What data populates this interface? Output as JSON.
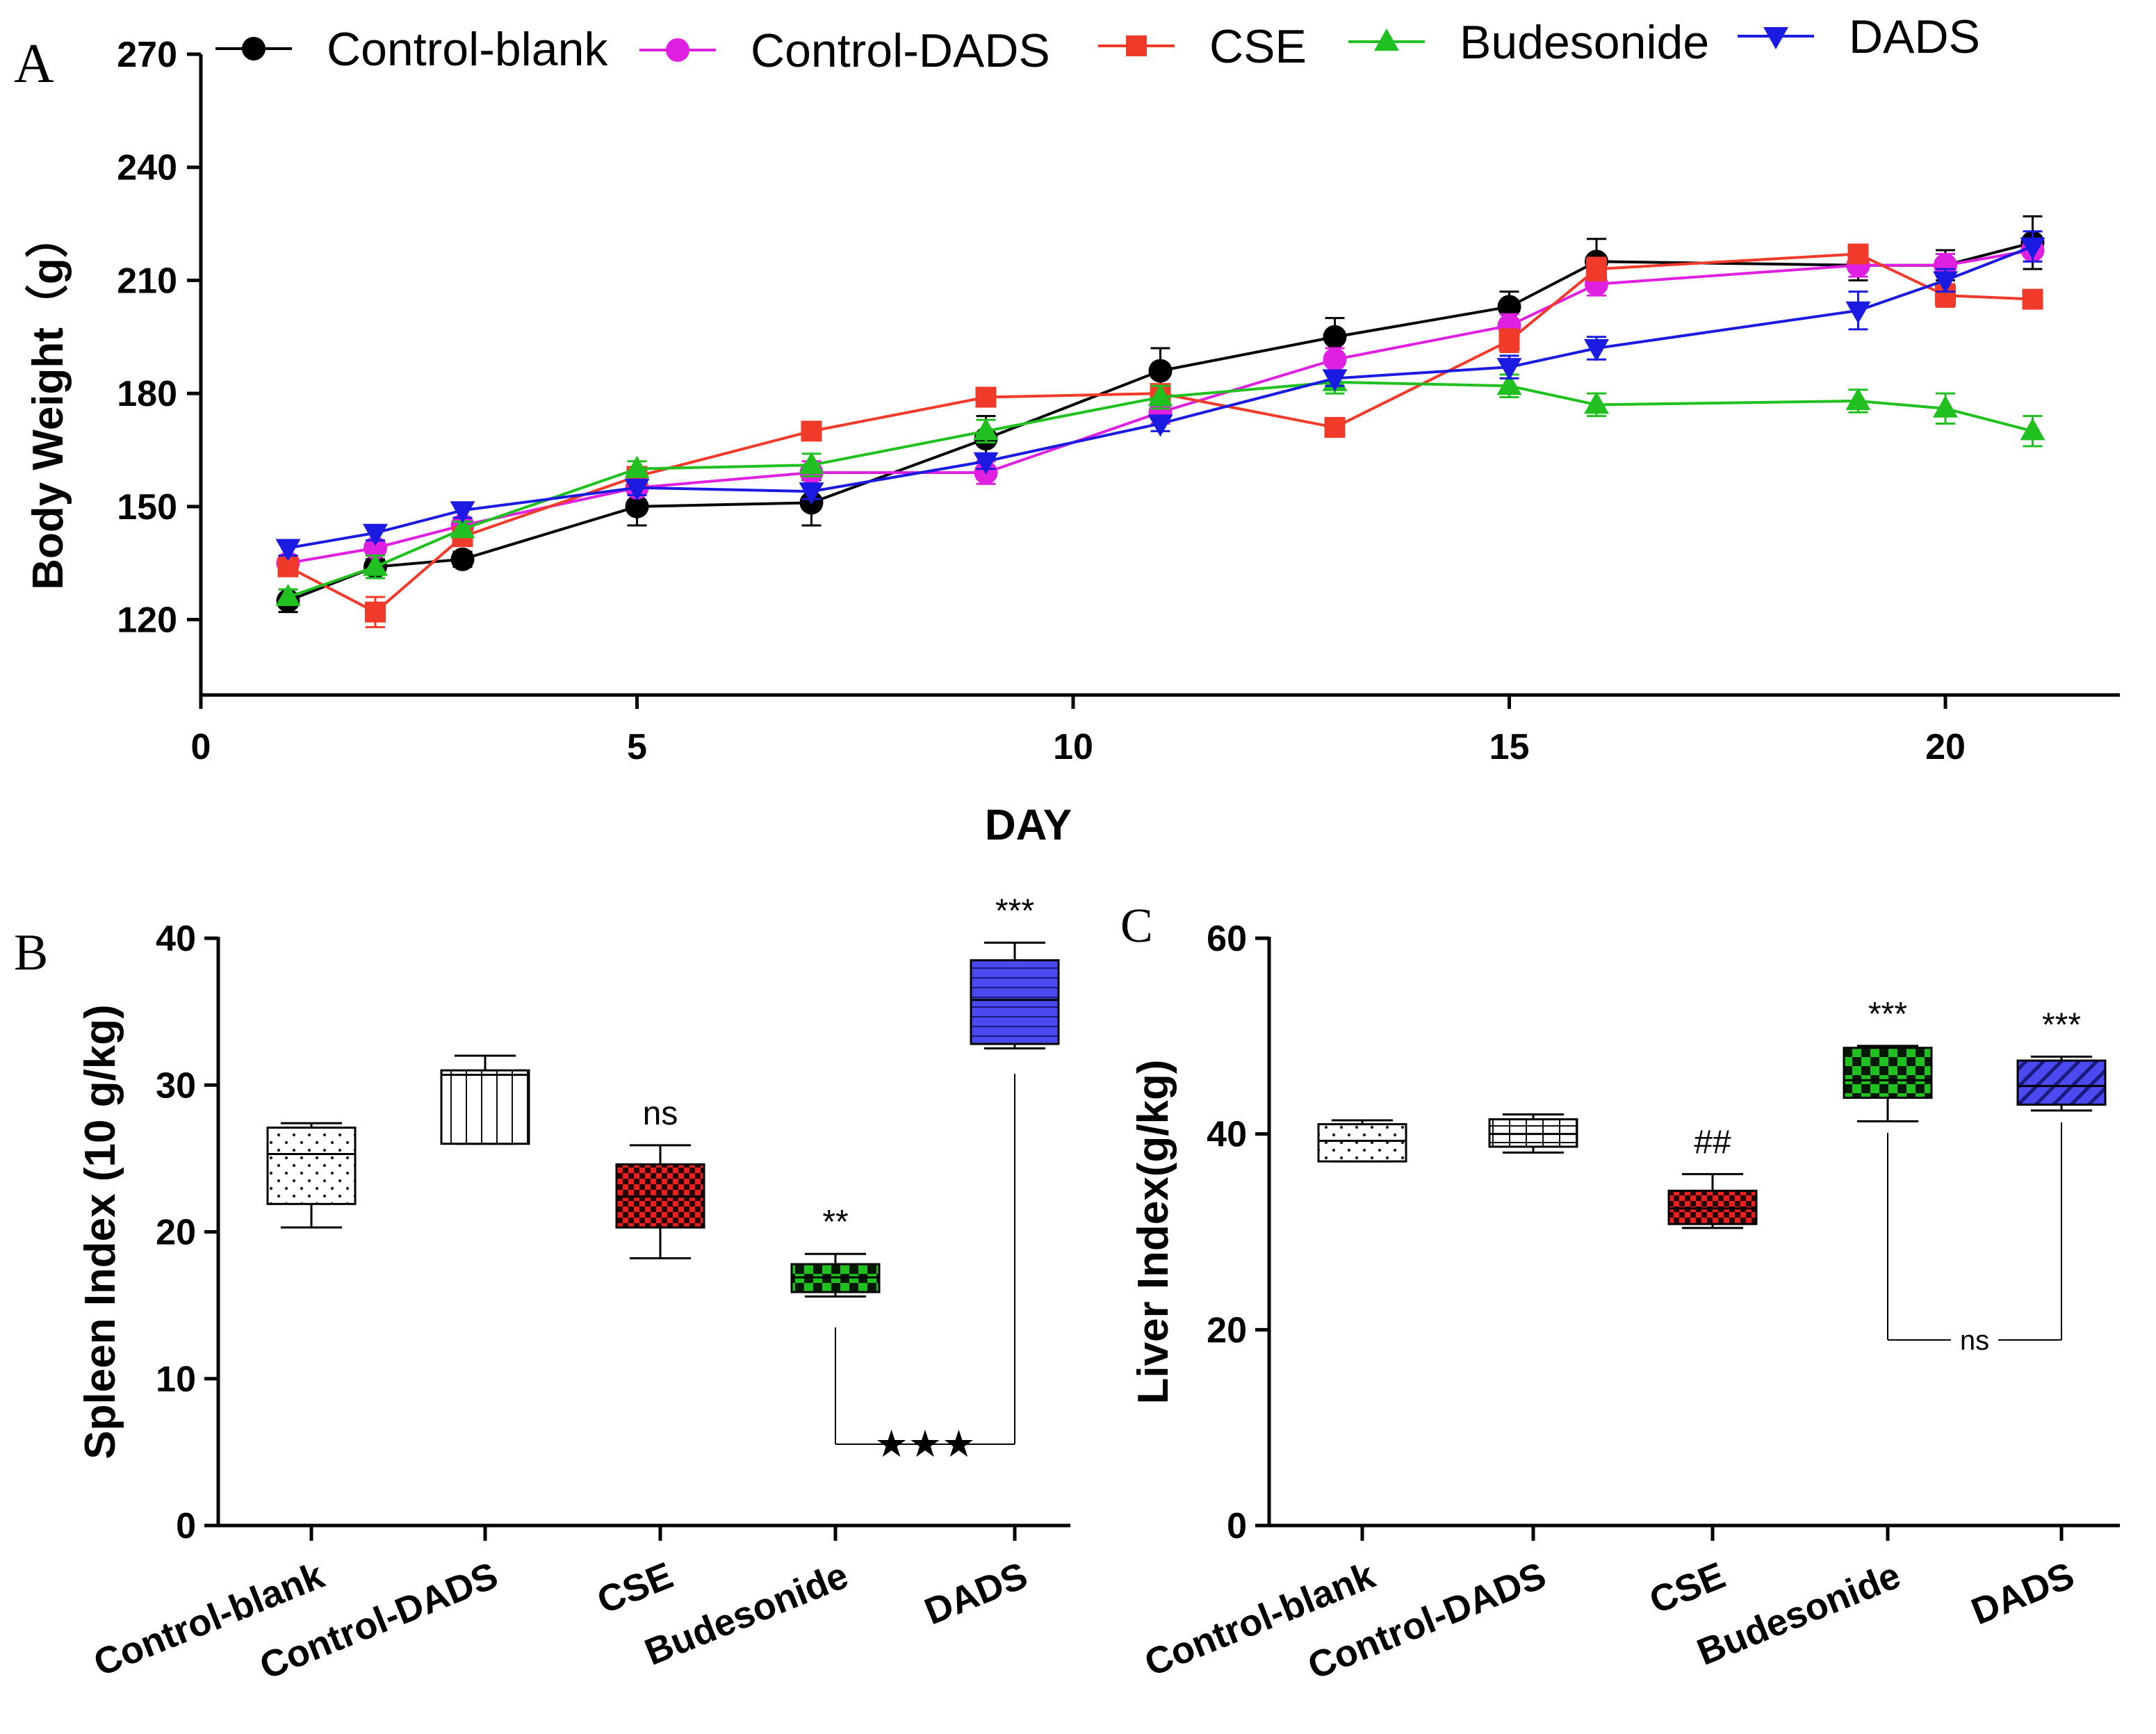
{
  "chart_data": [
    {
      "panel": "A",
      "type": "line",
      "title": "",
      "xlabel": "DAY",
      "ylabel": "Body Weight（g）",
      "xlim": [
        0,
        22
      ],
      "ylim": [
        100,
        270
      ],
      "xticks": [
        0,
        5,
        10,
        15,
        20
      ],
      "yticks": [
        120,
        150,
        180,
        210,
        240,
        270
      ],
      "legend_position": "top",
      "series": [
        {
          "name": "Control-blank",
          "color": "#000000",
          "marker": "circle",
          "x": [
            1,
            2,
            3,
            5,
            7,
            9,
            11,
            13,
            15,
            16,
            19,
            20,
            21
          ],
          "y": [
            125,
            134,
            136,
            150,
            151,
            168,
            186,
            195,
            203,
            215,
            214,
            214,
            220
          ],
          "err": [
            3,
            2,
            2,
            5,
            6,
            6,
            6,
            5,
            4,
            6,
            4,
            4,
            7
          ]
        },
        {
          "name": "Control-DADS",
          "color": "#e020e0",
          "marker": "circle",
          "x": [
            1,
            2,
            3,
            5,
            7,
            9,
            11,
            13,
            15,
            16,
            19,
            20,
            21
          ],
          "y": [
            135,
            139,
            145,
            155,
            159,
            159,
            175,
            189,
            198,
            209,
            214,
            214,
            218
          ],
          "err": [
            2,
            2,
            2,
            2,
            3,
            3,
            3,
            3,
            3,
            3,
            3,
            3,
            3
          ]
        },
        {
          "name": "CSE",
          "color": "#f03a2a",
          "marker": "square",
          "x": [
            1,
            2,
            3,
            5,
            7,
            9,
            11,
            13,
            15,
            16,
            19,
            20,
            21
          ],
          "y": [
            134,
            122,
            142,
            158,
            170,
            179,
            180,
            171,
            194,
            213,
            217,
            206,
            205
          ],
          "err": [
            2,
            4,
            2,
            2,
            2,
            2,
            2,
            2,
            3,
            3,
            2,
            3,
            2
          ]
        },
        {
          "name": "Budesonide",
          "color": "#20c020",
          "marker": "triangle-up",
          "x": [
            1,
            2,
            3,
            5,
            7,
            9,
            11,
            13,
            15,
            16,
            19,
            20,
            21
          ],
          "y": [
            126,
            134,
            144,
            160,
            161,
            170,
            179,
            183,
            182,
            177,
            178,
            176,
            170
          ],
          "err": [
            2,
            3,
            2,
            2,
            3,
            3,
            3,
            3,
            3,
            3,
            3,
            4,
            4
          ]
        },
        {
          "name": "DADS",
          "color": "#1a1ae0",
          "marker": "triangle-down",
          "x": [
            1,
            2,
            3,
            5,
            7,
            9,
            11,
            13,
            15,
            16,
            19,
            20,
            21
          ],
          "y": [
            139,
            143,
            149,
            155,
            154,
            162,
            172,
            184,
            187,
            192,
            202,
            210,
            219
          ],
          "err": [
            2,
            2,
            2,
            2,
            2,
            2,
            2,
            2,
            3,
            3,
            5,
            3,
            4
          ]
        }
      ]
    },
    {
      "panel": "B",
      "type": "box",
      "title": "",
      "xlabel": "",
      "ylabel": "Spleen Index (10 g/kg)",
      "ylim": [
        0,
        40
      ],
      "yticks": [
        0,
        10,
        20,
        30,
        40
      ],
      "categories": [
        "Control-blank",
        "Control-DADS",
        "CSE",
        "Budesonide",
        "DADS"
      ],
      "boxes": [
        {
          "min": 20.3,
          "q1": 21.9,
          "median": 25.3,
          "q3": 27.1,
          "max": 27.4,
          "color": "#ffffff",
          "pattern": "dots",
          "annotation": ""
        },
        {
          "min": 26.0,
          "q1": 26.0,
          "median": 30.7,
          "q3": 31.0,
          "max": 32.0,
          "color": "#ffffff",
          "pattern": "vlines",
          "annotation": ""
        },
        {
          "min": 18.2,
          "q1": 20.3,
          "median": 22.4,
          "q3": 24.6,
          "max": 25.9,
          "color": "#e82020",
          "pattern": "checker",
          "annotation": "ns"
        },
        {
          "min": 15.6,
          "q1": 15.9,
          "median": 16.9,
          "q3": 17.8,
          "max": 18.5,
          "color": "#20c020",
          "pattern": "checker",
          "annotation": "**"
        },
        {
          "min": 32.5,
          "q1": 32.8,
          "median": 35.8,
          "q3": 38.5,
          "max": 39.7,
          "color": "#4a4af0",
          "pattern": "hlines",
          "annotation": "***"
        }
      ],
      "bracket": {
        "from": "Budesonide",
        "to": "DADS",
        "label": "★★★"
      }
    },
    {
      "panel": "C",
      "type": "box",
      "title": "",
      "xlabel": "",
      "ylabel": "Liver  Index(g/kg)",
      "ylim": [
        0,
        60
      ],
      "yticks": [
        0,
        20,
        40,
        60
      ],
      "categories": [
        "Control-blank",
        "Control-DADS",
        "CSE",
        "Budesonide",
        "DADS"
      ],
      "boxes": [
        {
          "min": 37.2,
          "q1": 37.2,
          "median": 39.3,
          "q3": 41.0,
          "max": 41.4,
          "color": "#ffffff",
          "pattern": "dots",
          "annotation": ""
        },
        {
          "min": 38.1,
          "q1": 38.7,
          "median": 40.0,
          "q3": 41.5,
          "max": 42.0,
          "color": "#ffffff",
          "pattern": "grid",
          "annotation": ""
        },
        {
          "min": 30.4,
          "q1": 30.8,
          "median": 32.4,
          "q3": 34.2,
          "max": 35.9,
          "color": "#e82020",
          "pattern": "checker",
          "annotation": "##"
        },
        {
          "min": 41.3,
          "q1": 43.7,
          "median": 45.5,
          "q3": 48.8,
          "max": 49.0,
          "color": "#20c020",
          "pattern": "checker",
          "annotation": "***"
        },
        {
          "min": 42.4,
          "q1": 43.0,
          "median": 44.9,
          "q3": 47.5,
          "max": 47.9,
          "color": "#4a4af0",
          "pattern": "diag",
          "annotation": "***"
        }
      ],
      "bracket": {
        "from": "Budesonide",
        "to": "DADS",
        "label": "ns"
      }
    }
  ]
}
